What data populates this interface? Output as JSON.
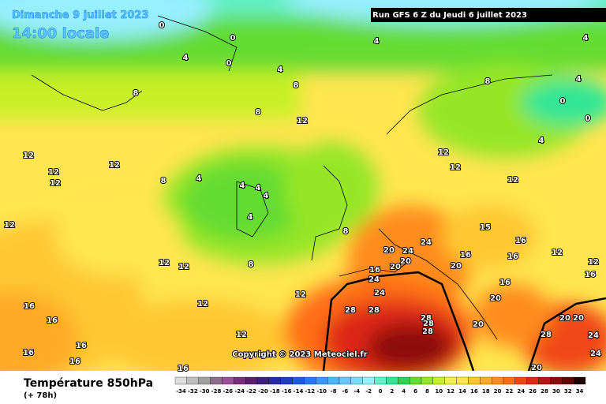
{
  "header": {
    "date": "Dimanche 9 juillet 2023",
    "time": "14:00 locale",
    "run": "Run GFS 6 Z du Jeudi 6 juillet 2023"
  },
  "copyright": "Copyright © 2023 Meteociel.fr",
  "footer": {
    "title": "Température 850hPa",
    "lead": "(+ 78h)"
  },
  "scale": {
    "values": [
      -34,
      -32,
      -30,
      -28,
      -26,
      -24,
      -22,
      -20,
      -18,
      -16,
      -14,
      -12,
      -10,
      -8,
      -6,
      -4,
      -2,
      0,
      2,
      4,
      6,
      8,
      10,
      12,
      14,
      16,
      18,
      20,
      22,
      24,
      26,
      28,
      30,
      32,
      34
    ],
    "colors": [
      "#dcdcdc",
      "#bebebe",
      "#a0a0a0",
      "#8c6e8c",
      "#9b4f9b",
      "#7d2d7d",
      "#5a1e6e",
      "#3c1e82",
      "#2828a0",
      "#1e3cc8",
      "#1e5ae6",
      "#2878ff",
      "#3c96ff",
      "#50b4ff",
      "#64c8ff",
      "#78dcff",
      "#96f0ff",
      "#64f0c8",
      "#32e696",
      "#32d250",
      "#64dc32",
      "#96e628",
      "#c8f028",
      "#f0f050",
      "#ffe650",
      "#ffc832",
      "#ffaa28",
      "#ff8c1e",
      "#ff6e14",
      "#f04614",
      "#dc2814",
      "#b41414",
      "#8c0a0a",
      "#640505",
      "#1e0000"
    ]
  },
  "contour_labels": [
    0,
    0,
    0,
    4,
    4,
    4,
    4,
    4,
    0,
    0,
    8,
    8,
    8,
    12,
    8,
    12,
    12,
    12,
    12,
    8,
    4,
    4,
    4,
    4,
    4,
    12,
    12,
    12,
    8,
    8,
    12,
    12,
    4,
    12,
    15,
    16,
    16,
    12,
    12,
    16,
    20,
    24,
    24,
    20,
    16,
    20,
    16,
    24,
    20,
    24,
    12,
    12,
    28,
    28,
    28,
    28,
    28,
    20,
    16,
    20,
    20,
    20,
    24,
    28,
    24,
    20,
    16,
    16,
    16,
    16,
    16,
    16,
    12
  ]
}
